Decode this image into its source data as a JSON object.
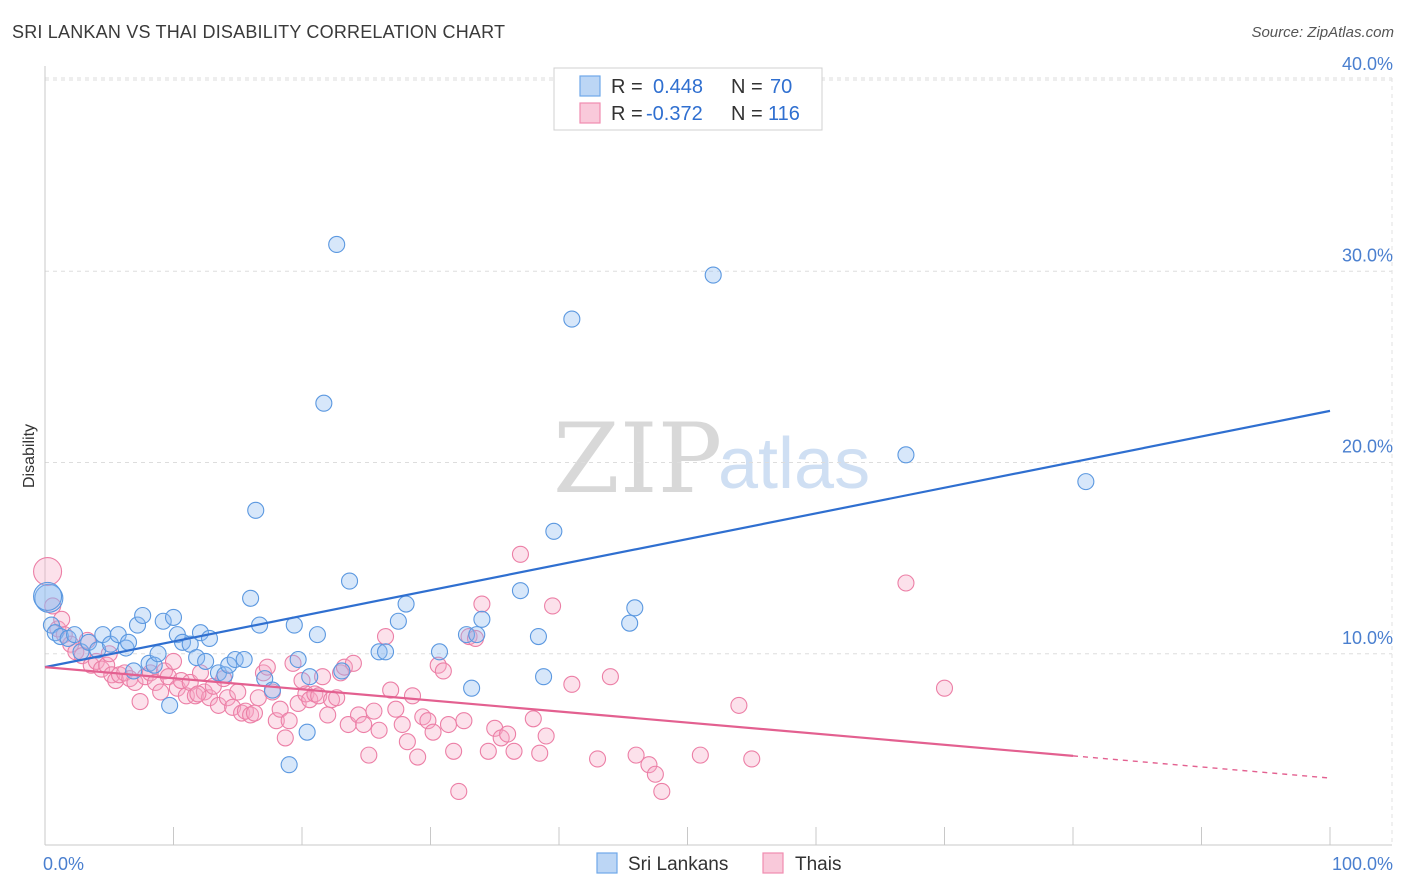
{
  "title": "SRI LANKAN VS THAI DISABILITY CORRELATION CHART",
  "source": "Source: ZipAtlas.com",
  "watermark": {
    "zip": "ZIP",
    "atlas": "atlas"
  },
  "colors": {
    "blue": "#6fa8e8",
    "blue_line": "#2f6fd0",
    "pink": "#f08cb0",
    "pink_line": "#e36090",
    "grid": "#dddddd",
    "tick_text": "#4a7fcf"
  },
  "legend": {
    "rows": [
      {
        "series": "Sri Lankans",
        "r_label": "R =",
        "r_value": "0.448",
        "n_label": "N =",
        "n_value": "70"
      },
      {
        "series": "Thais",
        "r_label": "R =",
        "r_value": "-0.372",
        "n_label": "N =",
        "n_value": "116"
      }
    ]
  },
  "chart_data": {
    "type": "scatter",
    "title": "SRI LANKAN VS THAI DISABILITY CORRELATION CHART",
    "xlabel": "",
    "ylabel": "Disability",
    "xlim": [
      0,
      100
    ],
    "ylim": [
      0,
      40
    ],
    "x_tick_labels": [
      "0.0%",
      "100.0%"
    ],
    "y_ticks": [
      10,
      20,
      30,
      40
    ],
    "y_tick_labels": [
      "10.0%",
      "20.0%",
      "30.0%",
      "40.0%"
    ],
    "grid": true,
    "legend_position": "bottom-center",
    "series": [
      {
        "name": "Sri Lankans",
        "r": 0.448,
        "n": 70,
        "trend": {
          "x": [
            0,
            100
          ],
          "y": [
            9.3,
            22.7
          ],
          "dashed_from": null
        },
        "points": [
          [
            0.3,
            12.9
          ],
          [
            0.5,
            11.5
          ],
          [
            0.8,
            11.1
          ],
          [
            1.2,
            10.9
          ],
          [
            1.8,
            10.8
          ],
          [
            2.3,
            11.0
          ],
          [
            2.8,
            10.1
          ],
          [
            3.4,
            10.6
          ],
          [
            4.1,
            10.2
          ],
          [
            4.5,
            11.0
          ],
          [
            5.1,
            10.5
          ],
          [
            5.7,
            11.0
          ],
          [
            6.3,
            10.3
          ],
          [
            6.5,
            10.6
          ],
          [
            6.9,
            9.1
          ],
          [
            7.2,
            11.5
          ],
          [
            7.6,
            12.0
          ],
          [
            8.1,
            9.5
          ],
          [
            8.5,
            9.4
          ],
          [
            8.8,
            10.0
          ],
          [
            9.2,
            11.7
          ],
          [
            9.7,
            7.3
          ],
          [
            10.0,
            11.9
          ],
          [
            10.3,
            11.0
          ],
          [
            10.7,
            10.6
          ],
          [
            11.3,
            10.5
          ],
          [
            11.8,
            9.8
          ],
          [
            12.1,
            11.1
          ],
          [
            12.5,
            9.6
          ],
          [
            12.8,
            10.8
          ],
          [
            13.5,
            9.0
          ],
          [
            14.0,
            8.9
          ],
          [
            14.3,
            9.4
          ],
          [
            14.8,
            9.7
          ],
          [
            15.5,
            9.7
          ],
          [
            16.0,
            12.9
          ],
          [
            16.4,
            17.5
          ],
          [
            16.7,
            11.5
          ],
          [
            17.1,
            8.7
          ],
          [
            17.7,
            8.1
          ],
          [
            19.0,
            4.2
          ],
          [
            19.4,
            11.5
          ],
          [
            19.7,
            9.7
          ],
          [
            20.4,
            5.9
          ],
          [
            20.6,
            8.8
          ],
          [
            21.2,
            11.0
          ],
          [
            21.7,
            23.1
          ],
          [
            22.7,
            31.4
          ],
          [
            23.1,
            9.1
          ],
          [
            23.7,
            13.8
          ],
          [
            26.0,
            10.1
          ],
          [
            26.5,
            10.1
          ],
          [
            27.5,
            11.7
          ],
          [
            28.1,
            12.6
          ],
          [
            30.7,
            10.1
          ],
          [
            32.8,
            11.0
          ],
          [
            33.2,
            8.2
          ],
          [
            33.6,
            11.0
          ],
          [
            34.0,
            11.8
          ],
          [
            37.0,
            13.3
          ],
          [
            38.4,
            10.9
          ],
          [
            38.8,
            8.8
          ],
          [
            39.6,
            16.4
          ],
          [
            41.0,
            27.5
          ],
          [
            45.5,
            11.6
          ],
          [
            45.9,
            12.4
          ],
          [
            52.0,
            29.8
          ],
          [
            67.0,
            20.4
          ],
          [
            81.0,
            19.0
          ],
          [
            0.2,
            13.0
          ]
        ]
      },
      {
        "name": "Thais",
        "r": -0.372,
        "n": 116,
        "trend": {
          "x": [
            0,
            100
          ],
          "y": [
            9.3,
            3.5
          ],
          "dashed_from": 80
        },
        "points": [
          [
            0.2,
            14.3
          ],
          [
            0.6,
            12.5
          ],
          [
            1.0,
            11.3
          ],
          [
            1.5,
            11.0
          ],
          [
            2.0,
            10.5
          ],
          [
            2.4,
            10.1
          ],
          [
            2.9,
            9.9
          ],
          [
            3.3,
            10.7
          ],
          [
            3.6,
            9.4
          ],
          [
            4.0,
            9.6
          ],
          [
            4.4,
            9.2
          ],
          [
            4.8,
            9.4
          ],
          [
            5.2,
            8.9
          ],
          [
            5.5,
            8.6
          ],
          [
            5.8,
            8.9
          ],
          [
            6.2,
            9.0
          ],
          [
            6.6,
            8.7
          ],
          [
            7.0,
            8.5
          ],
          [
            7.4,
            7.5
          ],
          [
            7.8,
            8.8
          ],
          [
            8.2,
            9.0
          ],
          [
            8.6,
            8.5
          ],
          [
            9.0,
            8.0
          ],
          [
            9.3,
            9.1
          ],
          [
            9.6,
            8.8
          ],
          [
            10.0,
            9.6
          ],
          [
            10.3,
            8.2
          ],
          [
            10.6,
            8.6
          ],
          [
            11.0,
            7.8
          ],
          [
            11.3,
            8.5
          ],
          [
            11.7,
            7.8
          ],
          [
            12.1,
            9.0
          ],
          [
            12.4,
            8.0
          ],
          [
            12.8,
            7.7
          ],
          [
            13.1,
            8.3
          ],
          [
            13.5,
            7.3
          ],
          [
            13.9,
            8.7
          ],
          [
            14.2,
            7.7
          ],
          [
            14.6,
            7.2
          ],
          [
            15.0,
            8.0
          ],
          [
            15.3,
            6.9
          ],
          [
            15.6,
            7.0
          ],
          [
            16.0,
            6.8
          ],
          [
            16.3,
            6.9
          ],
          [
            16.6,
            7.7
          ],
          [
            17.0,
            9.0
          ],
          [
            17.3,
            9.3
          ],
          [
            17.7,
            8.0
          ],
          [
            18.0,
            6.5
          ],
          [
            18.3,
            7.1
          ],
          [
            18.7,
            5.6
          ],
          [
            19.0,
            6.5
          ],
          [
            19.3,
            9.5
          ],
          [
            19.7,
            7.4
          ],
          [
            20.0,
            8.6
          ],
          [
            20.3,
            7.9
          ],
          [
            20.6,
            7.6
          ],
          [
            21.0,
            7.9
          ],
          [
            21.3,
            7.8
          ],
          [
            21.6,
            8.8
          ],
          [
            22.0,
            6.8
          ],
          [
            22.3,
            7.6
          ],
          [
            22.7,
            7.7
          ],
          [
            23.0,
            9.0
          ],
          [
            23.3,
            9.3
          ],
          [
            23.6,
            6.3
          ],
          [
            24.0,
            9.5
          ],
          [
            24.4,
            6.8
          ],
          [
            24.8,
            6.3
          ],
          [
            25.2,
            4.7
          ],
          [
            25.6,
            7.0
          ],
          [
            26.0,
            6.0
          ],
          [
            26.5,
            10.9
          ],
          [
            26.9,
            8.1
          ],
          [
            27.3,
            7.1
          ],
          [
            27.8,
            6.3
          ],
          [
            28.2,
            5.4
          ],
          [
            28.6,
            7.8
          ],
          [
            29.0,
            4.6
          ],
          [
            29.4,
            6.7
          ],
          [
            29.8,
            6.5
          ],
          [
            30.2,
            5.9
          ],
          [
            30.6,
            9.4
          ],
          [
            31.0,
            9.1
          ],
          [
            31.4,
            6.3
          ],
          [
            31.8,
            4.9
          ],
          [
            32.2,
            2.8
          ],
          [
            32.6,
            6.5
          ],
          [
            33.0,
            10.9
          ],
          [
            33.5,
            10.8
          ],
          [
            34.0,
            12.6
          ],
          [
            34.5,
            4.9
          ],
          [
            35.0,
            6.1
          ],
          [
            35.5,
            5.6
          ],
          [
            36.0,
            5.8
          ],
          [
            36.5,
            4.9
          ],
          [
            37.0,
            15.2
          ],
          [
            38.0,
            6.6
          ],
          [
            38.5,
            4.8
          ],
          [
            39.0,
            5.7
          ],
          [
            39.5,
            12.5
          ],
          [
            41.0,
            8.4
          ],
          [
            43.0,
            4.5
          ],
          [
            44.0,
            8.8
          ],
          [
            46.0,
            4.7
          ],
          [
            47.0,
            4.2
          ],
          [
            47.5,
            3.7
          ],
          [
            48.0,
            2.8
          ],
          [
            51.0,
            4.7
          ],
          [
            54.0,
            7.3
          ],
          [
            55.0,
            4.5
          ],
          [
            67.0,
            13.7
          ],
          [
            70.0,
            8.2
          ],
          [
            1.3,
            11.8
          ],
          [
            5.0,
            10.0
          ],
          [
            11.9,
            7.9
          ]
        ]
      }
    ]
  }
}
